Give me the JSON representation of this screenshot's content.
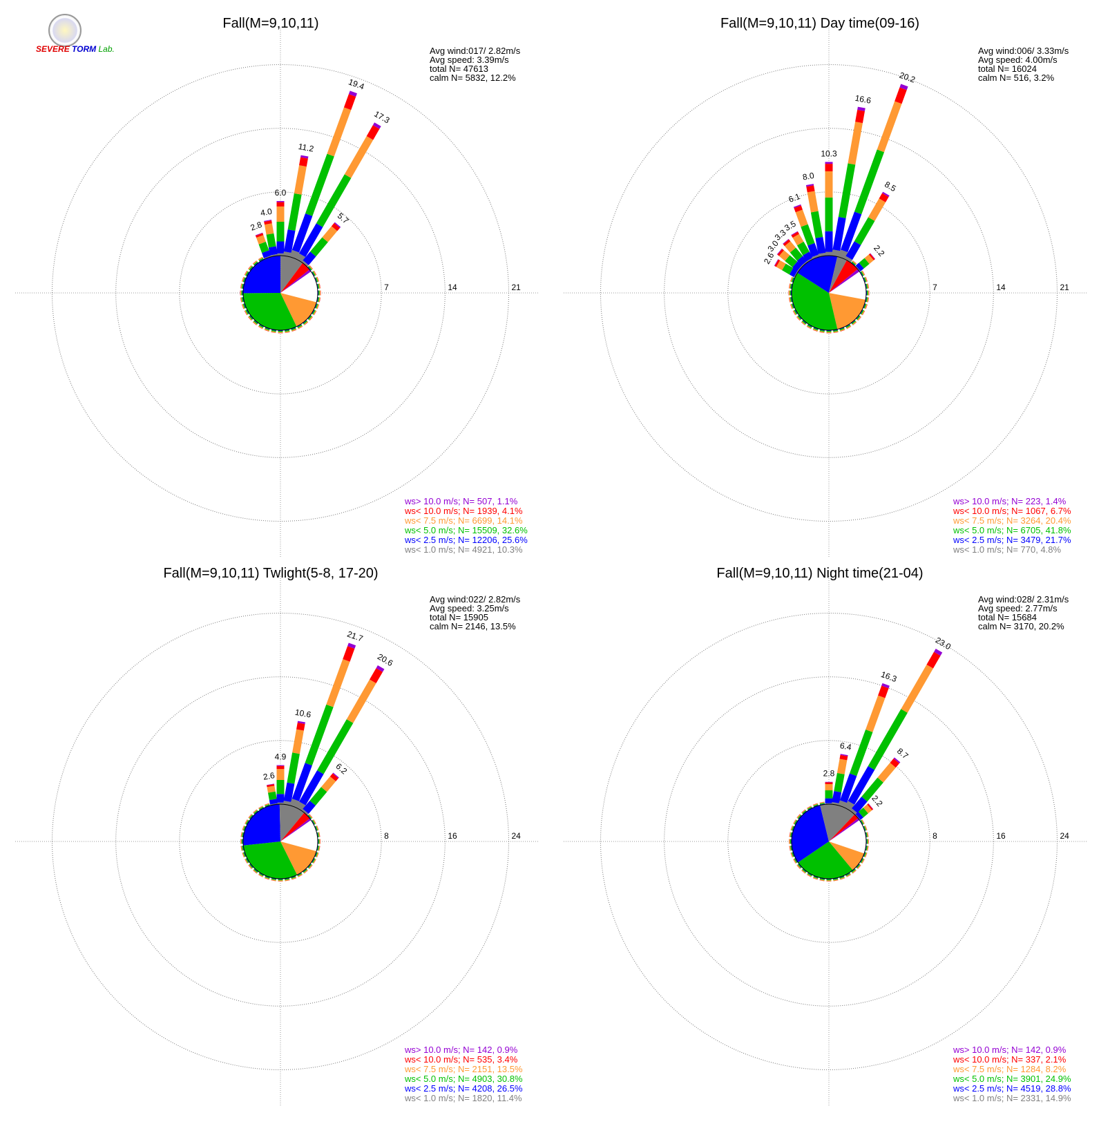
{
  "legend_bins": [
    {
      "label": "ws> 10.0 m/s; N=",
      "color": "#9400d3"
    },
    {
      "label": "ws< 10.0 m/s; N=",
      "color": "#ff0000"
    },
    {
      "label": "ws<  7.5 m/s; N=",
      "color": "#ff9933"
    },
    {
      "label": "ws<  5.0 m/s; N=",
      "color": "#00c000"
    },
    {
      "label": "ws<  2.5 m/s; N=",
      "color": "#0000ff"
    },
    {
      "label": "ws<  1.0 m/s; N=",
      "color": "#808080"
    }
  ],
  "logo": {
    "line1a": "S",
    "line1b": "EVERE",
    "line2a": "TORM",
    "line2b": "Lab."
  },
  "chart_data": [
    {
      "type": "windrose",
      "title": "Fall(M=9,10,11)",
      "rings": [
        7,
        14,
        21
      ],
      "info": {
        "avg_wind": "Avg wind:017/ 2.82m/s",
        "avg_speed": "Avg speed: 3.39m/s",
        "total_n": "total N=      47613",
        "calm_n": "calm N=   5832,  12.2%"
      },
      "legend": [
        "507,  1.1%",
        "1939,  4.1%",
        "6699, 14.1%",
        "15509, 32.6%",
        "12206, 25.6%",
        "4921, 10.3%"
      ],
      "spokes": [
        {
          "dir": 0,
          "total": 6.0,
          "label": "6.0"
        },
        {
          "dir": 10,
          "total": 11.2,
          "label": "11.2"
        },
        {
          "dir": 20,
          "total": 19.4,
          "label": "19.4"
        },
        {
          "dir": 30,
          "total": 17.3,
          "label": "17.3"
        },
        {
          "dir": 40,
          "total": 5.7,
          "label": "5.7"
        },
        {
          "dir": 350,
          "total": 4.0,
          "label": "4.0"
        },
        {
          "dir": 340,
          "total": 2.8,
          "label": "2.8"
        }
      ],
      "pie": [
        0.0,
        14.1,
        32.6,
        25.6,
        10.3,
        4.1,
        1.1
      ]
    },
    {
      "type": "windrose",
      "title": "Fall(M=9,10,11) Day time(09-16)",
      "rings": [
        7,
        14,
        21
      ],
      "info": {
        "avg_wind": "Avg wind:006/ 3.33m/s",
        "avg_speed": "Avg speed: 4.00m/s",
        "total_n": "total N=      16024",
        "calm_n": "calm N=    516,   3.2%"
      },
      "legend": [
        "223,  1.4%",
        "1067,  6.7%",
        "3264, 20.4%",
        "6705, 41.8%",
        "3479, 21.7%",
        "770,  4.8%"
      ],
      "spokes": [
        {
          "dir": 0,
          "total": 10.3,
          "label": "10.3"
        },
        {
          "dir": 10,
          "total": 16.6,
          "label": "16.6"
        },
        {
          "dir": 20,
          "total": 20.2,
          "label": "20.2"
        },
        {
          "dir": 30,
          "total": 8.5,
          "label": "8.5"
        },
        {
          "dir": 50,
          "total": 2.2,
          "label": "2.2"
        },
        {
          "dir": 350,
          "total": 8.0,
          "label": "8.0"
        },
        {
          "dir": 340,
          "total": 6.1,
          "label": "6.1"
        },
        {
          "dir": 330,
          "total": 3.5,
          "label": "3.5"
        },
        {
          "dir": 320,
          "total": 3.3,
          "label": "3.3"
        },
        {
          "dir": 310,
          "total": 3.0,
          "label": "3.0"
        },
        {
          "dir": 300,
          "total": 2.6,
          "label": "2.6"
        }
      ],
      "pie": [
        0.0,
        20.4,
        41.8,
        21.7,
        4.8,
        6.7,
        1.4
      ]
    },
    {
      "type": "windrose",
      "title": "Fall(M=9,10,11) Twlight(5-8, 17-20)",
      "rings": [
        8,
        16,
        24
      ],
      "info": {
        "avg_wind": "Avg wind:022/ 2.82m/s",
        "avg_speed": "Avg speed: 3.25m/s",
        "total_n": "total N=      15905",
        "calm_n": "calm N=   2146,  13.5%"
      },
      "legend": [
        "142,  0.9%",
        "535,  3.4%",
        "2151, 13.5%",
        "4903, 30.8%",
        "4208, 26.5%",
        "1820, 11.4%"
      ],
      "spokes": [
        {
          "dir": 0,
          "total": 4.9,
          "label": "4.9"
        },
        {
          "dir": 10,
          "total": 10.6,
          "label": "10.6"
        },
        {
          "dir": 20,
          "total": 21.7,
          "label": "21.7"
        },
        {
          "dir": 30,
          "total": 20.6,
          "label": "20.6"
        },
        {
          "dir": 40,
          "total": 6.2,
          "label": "6.2"
        },
        {
          "dir": 350,
          "total": 2.6,
          "label": "2.6"
        }
      ],
      "pie": [
        0.0,
        13.5,
        30.8,
        26.5,
        11.4,
        3.4,
        0.9
      ]
    },
    {
      "type": "windrose",
      "title": "Fall(M=9,10,11) Night time(21-04)",
      "rings": [
        8,
        16,
        24
      ],
      "info": {
        "avg_wind": "Avg wind:028/ 2.31m/s",
        "avg_speed": "Avg speed: 2.77m/s",
        "total_n": "total N=      15684",
        "calm_n": "calm N=   3170,  20.2%"
      },
      "legend": [
        "142,  0.9%",
        "337,  2.1%",
        "1284,  8.2%",
        "3901, 24.9%",
        "4519, 28.8%",
        "2331, 14.9%"
      ],
      "spokes": [
        {
          "dir": 0,
          "total": 2.8,
          "label": "2.8"
        },
        {
          "dir": 10,
          "total": 6.4,
          "label": "6.4"
        },
        {
          "dir": 20,
          "total": 16.3,
          "label": "16.3"
        },
        {
          "dir": 30,
          "total": 23.0,
          "label": "23.0"
        },
        {
          "dir": 40,
          "total": 8.7,
          "label": "8.7"
        },
        {
          "dir": 50,
          "total": 2.2,
          "label": "2.2"
        }
      ],
      "pie": [
        0.0,
        8.2,
        24.9,
        28.8,
        14.9,
        2.1,
        0.9
      ]
    }
  ]
}
